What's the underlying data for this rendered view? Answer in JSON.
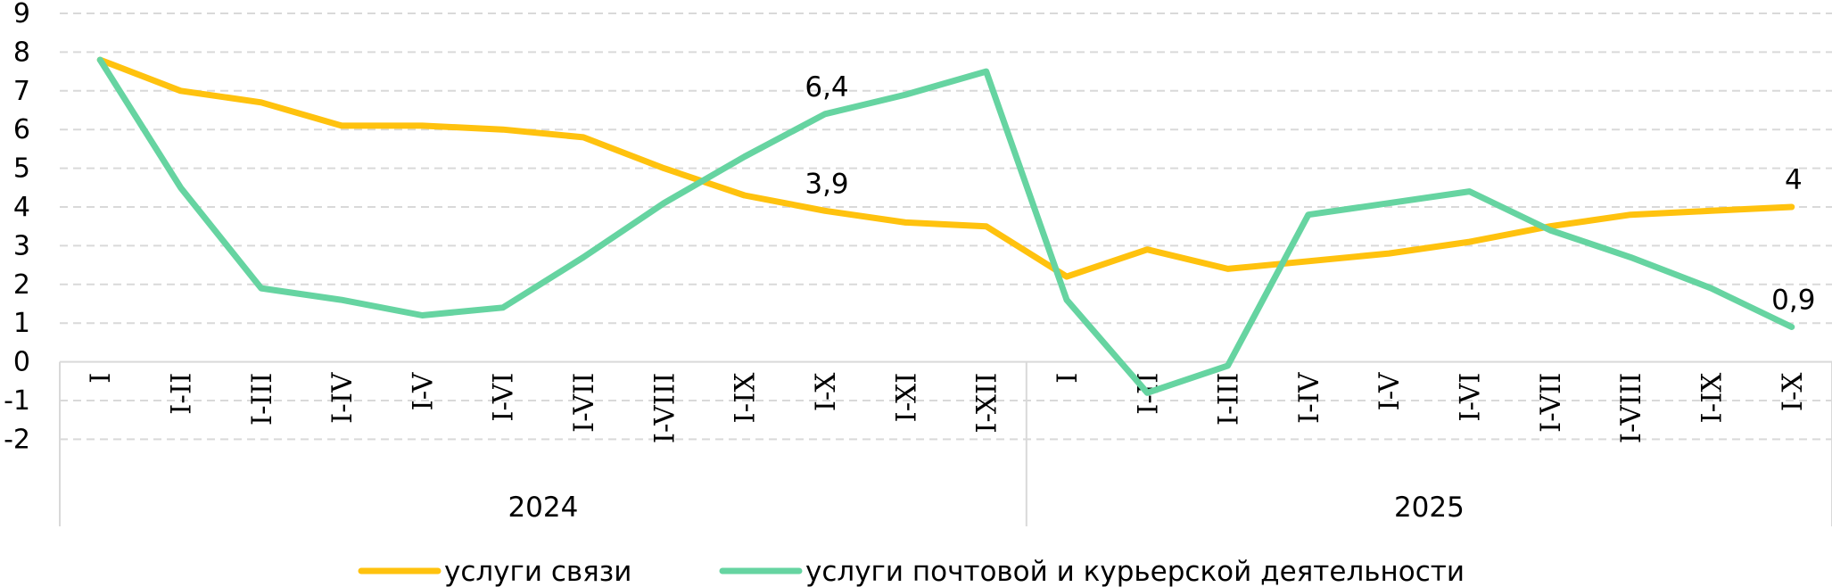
{
  "chart_data": {
    "type": "line",
    "ylim": [
      -2,
      9
    ],
    "yticks": [
      "-2",
      "-1",
      "0",
      "1",
      "2",
      "3",
      "4",
      "5",
      "6",
      "7",
      "8",
      "9"
    ],
    "grid": true,
    "legend_position": "bottom",
    "categories": [
      "I",
      "I-II",
      "I-III",
      "I-IV",
      "I-V",
      "I-VI",
      "I-VII",
      "I-VIII",
      "I-IX",
      "I-X",
      "I-XI",
      "I-XII",
      "I",
      "I-II",
      "I-III",
      "I-IV",
      "I-V",
      "I-VI",
      "I-VII",
      "I-VIII",
      "I-IX",
      "I-X"
    ],
    "groups": [
      {
        "label": "2024",
        "start": 0,
        "count": 12
      },
      {
        "label": "2025",
        "start": 12,
        "count": 10
      }
    ],
    "series": [
      {
        "name": "услуги связи",
        "color": "#FFC20E",
        "values": [
          7.8,
          7.0,
          6.7,
          6.1,
          6.1,
          6.0,
          5.8,
          5.0,
          4.3,
          3.9,
          3.6,
          3.5,
          2.2,
          2.9,
          2.4,
          2.6,
          2.8,
          3.1,
          3.5,
          3.8,
          3.9,
          4.0
        ]
      },
      {
        "name": "услуги почтовой и курьерской деятельности",
        "color": "#66D4A1",
        "values": [
          7.8,
          4.5,
          1.9,
          1.6,
          1.2,
          1.4,
          2.7,
          4.1,
          5.3,
          6.4,
          6.9,
          7.5,
          1.6,
          -0.8,
          -0.1,
          3.8,
          4.1,
          4.4,
          3.4,
          2.7,
          1.9,
          0.9
        ]
      }
    ],
    "annotations": [
      {
        "series": 0,
        "index": 9,
        "text": "3,9"
      },
      {
        "series": 0,
        "index": 21,
        "text": "4"
      },
      {
        "series": 1,
        "index": 9,
        "text": "6,4"
      },
      {
        "series": 1,
        "index": 21,
        "text": "0,9"
      }
    ]
  }
}
